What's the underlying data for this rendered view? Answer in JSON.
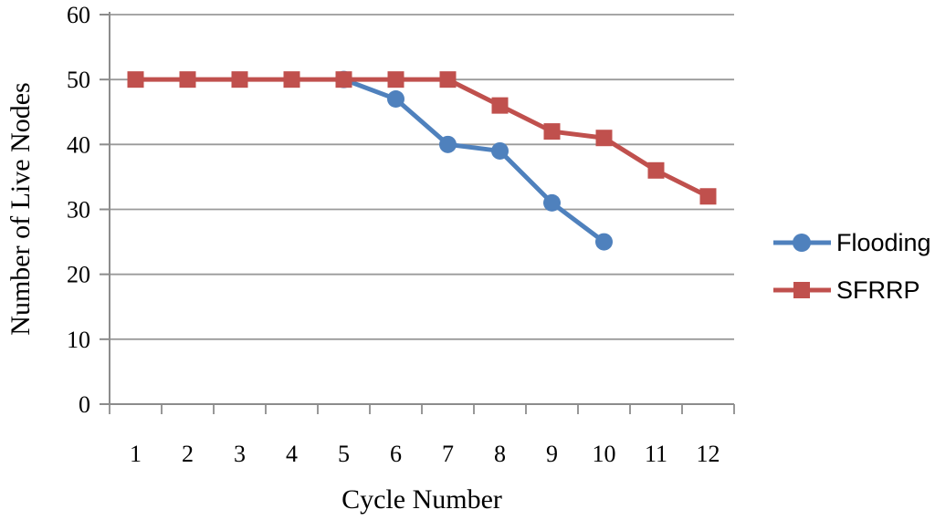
{
  "chart_data": {
    "type": "line",
    "title": "",
    "xlabel": "Cycle Number",
    "ylabel": "Number of Live Nodes",
    "x_categories": [
      1,
      2,
      3,
      4,
      5,
      6,
      7,
      8,
      9,
      10,
      11,
      12
    ],
    "yticks": [
      0,
      10,
      20,
      30,
      40,
      50,
      60
    ],
    "ylim": [
      0,
      60
    ],
    "grid": "horizontal-only",
    "legend_position": "right",
    "series": [
      {
        "name": "Flooding",
        "marker": "circle",
        "color": "#4F81BD",
        "points": [
          [
            5,
            50
          ],
          [
            6,
            47
          ],
          [
            7,
            40
          ],
          [
            8,
            39
          ],
          [
            9,
            31
          ],
          [
            10,
            25
          ]
        ]
      },
      {
        "name": "SFRRP",
        "marker": "square",
        "color": "#C0504D",
        "points": [
          [
            1,
            50
          ],
          [
            2,
            50
          ],
          [
            3,
            50
          ],
          [
            4,
            50
          ],
          [
            5,
            50
          ],
          [
            6,
            50
          ],
          [
            7,
            50
          ],
          [
            8,
            46
          ],
          [
            9,
            42
          ],
          [
            10,
            41
          ],
          [
            11,
            36
          ],
          [
            12,
            32
          ]
        ]
      }
    ],
    "colors": {
      "gridline": "#9A9A9A",
      "axis": "#8C8C8C",
      "text": "#000000",
      "background": "#FFFFFF"
    }
  }
}
